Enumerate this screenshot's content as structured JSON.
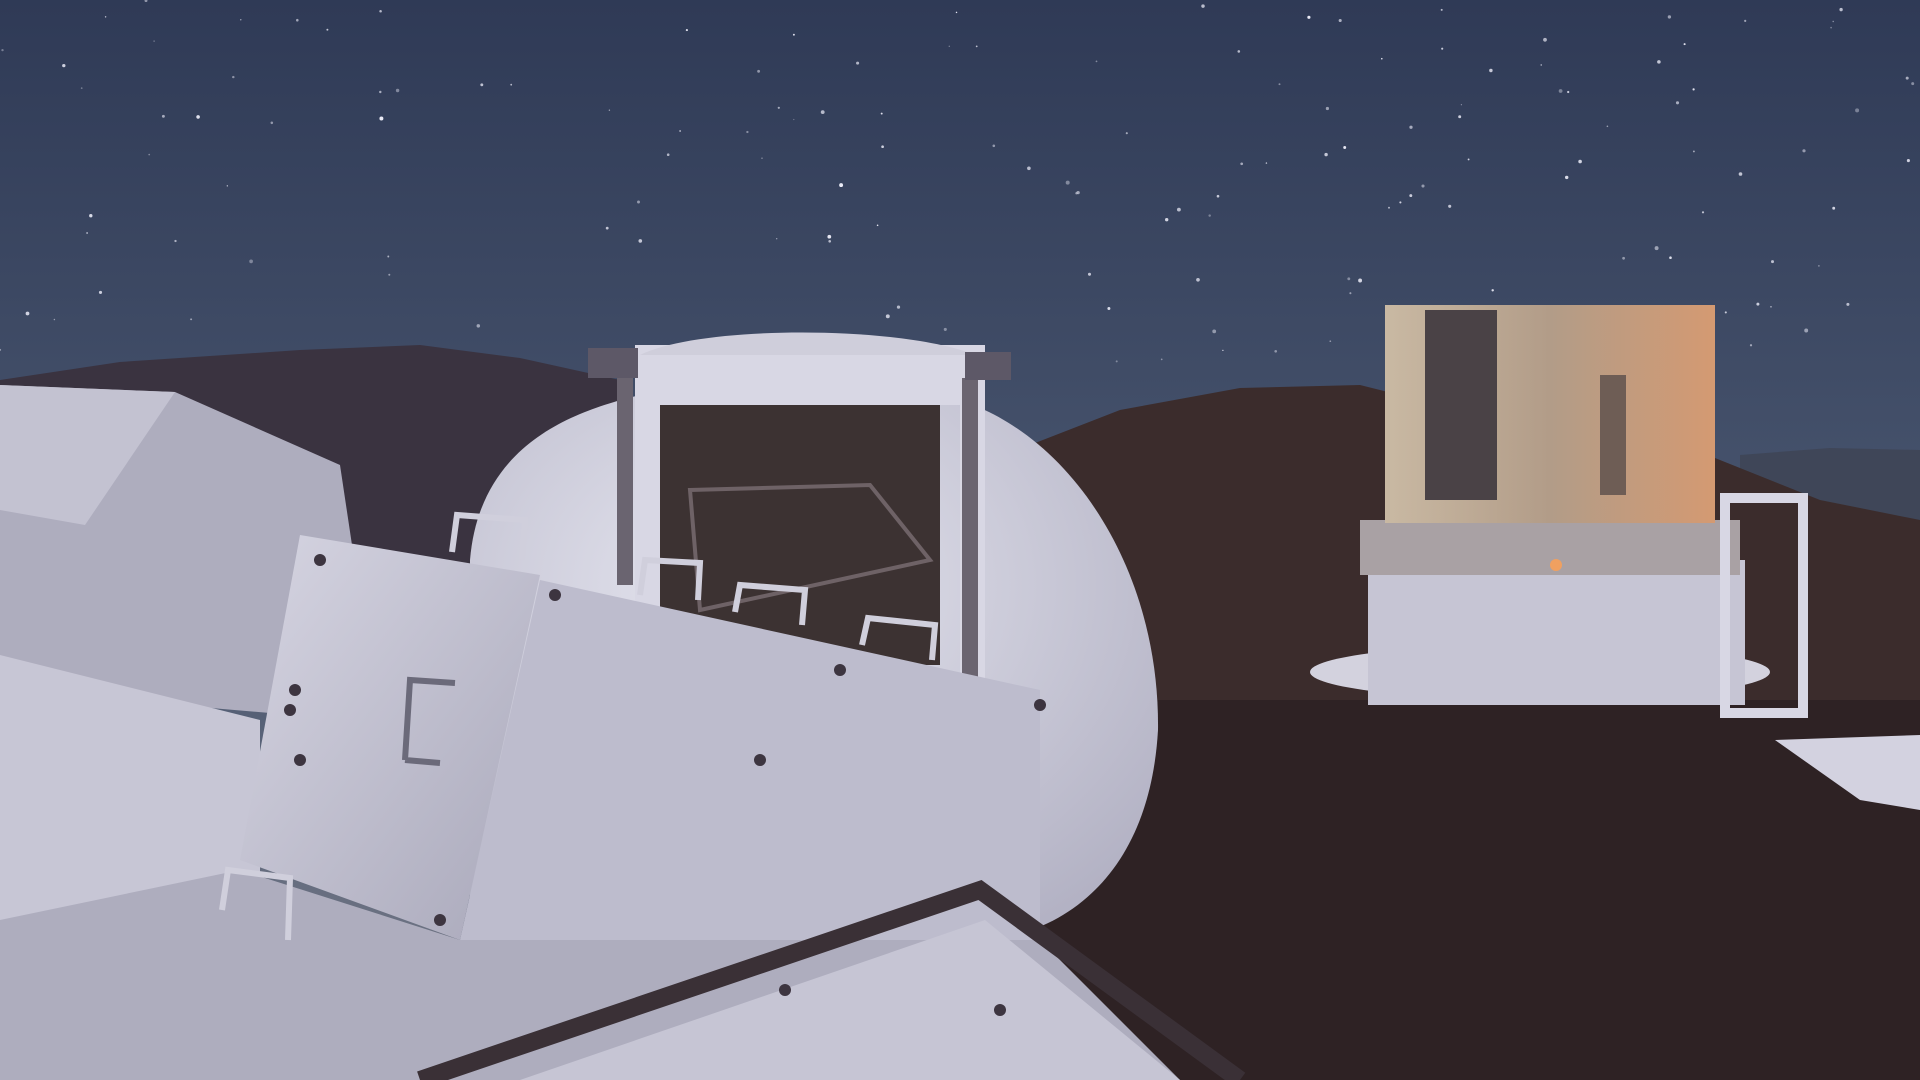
{
  "scene": {
    "subject": "night-sky-observatory-domes",
    "colors": {
      "sky_top": "#2f3a56",
      "sky_mid": "#4a5770",
      "sky_horizon": "#7a7d8a",
      "hill_left": "#3a3340",
      "hill_right": "#3b2c2c",
      "ground": "#2e2224",
      "dome_light": "#d9d9e6",
      "dome_shade": "#b8b7c8",
      "panel": "#c9c8d6",
      "panel_dark": "#8f8ea0",
      "slit_interior": "#3c3232",
      "building_lit": "#b6a592",
      "building_glow": "#e0a070",
      "building_dark": "#4a4246",
      "star": "#f4f4ff"
    }
  }
}
